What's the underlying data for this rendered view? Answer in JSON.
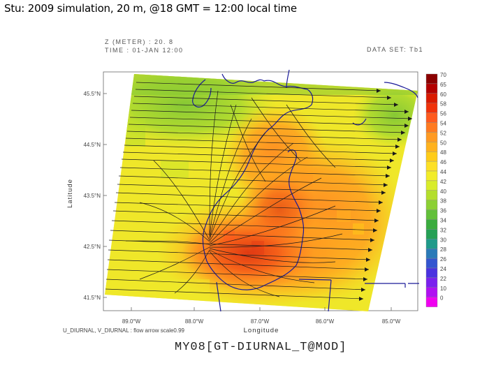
{
  "slide_title": "Stu: 2009 simulation, 20 m, @18 GMT = 12:00 local time",
  "header": {
    "z_label": "Z (METER) : 20. 8",
    "time_label": "TIME : 01-JAN 12:00",
    "dataset_label": "DATA SET: Tb1"
  },
  "axes": {
    "ylabel": "Latitude",
    "xlabel": "Longitude",
    "y_ticks": [
      "45.5°N",
      "44.5°N",
      "43.5°N",
      "42.5°N",
      "41.5°N"
    ],
    "x_ticks": [
      "89.0°W",
      "88.0°W",
      "87.0°W",
      "86.0°W",
      "85.0°W"
    ]
  },
  "vector_caption": "U_DIURNAL, V_DIURNAL : flow arrow scale0.99",
  "footer_label": "MY08[GT-DIURNAL_T@MOD]",
  "colorbar": {
    "levels": [
      "70",
      "65",
      "60",
      "58",
      "56",
      "54",
      "52",
      "50",
      "48",
      "46",
      "44",
      "42",
      "40",
      "38",
      "36",
      "34",
      "32",
      "30",
      "28",
      "26",
      "24",
      "22",
      "10",
      "0"
    ],
    "colors": [
      "#8b0000",
      "#b30000",
      "#d91a00",
      "#f0320a",
      "#ff5a1e",
      "#ff7a20",
      "#ff9a22",
      "#ffb21e",
      "#ffcc18",
      "#fde025",
      "#f2ec28",
      "#d9ec2a",
      "#b4de2c",
      "#8cd034",
      "#62c03a",
      "#3aac3e",
      "#25a055",
      "#1f9a8a",
      "#2a7ab8",
      "#3355d0",
      "#4a32e0",
      "#7a20ee",
      "#b010f2",
      "#f000f0"
    ]
  },
  "colors": {
    "lake_outline": "#1a1a99",
    "vector": "#1a1a1a",
    "frame": "#666666"
  },
  "icons": [
    "arrow-glyph"
  ]
}
